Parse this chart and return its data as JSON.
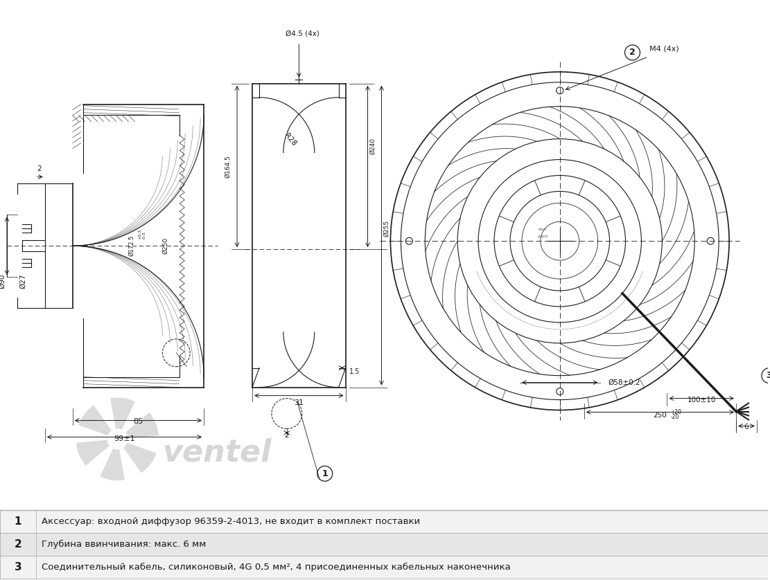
{
  "bg_color": "#ffffff",
  "drawing_color": "#1a1a1a",
  "table_rows": [
    {
      "num": "1",
      "text": "Аксессуар: входной диффузор 96359-2-4013, не входит в комплект поставки",
      "bg": "#f2f2f2"
    },
    {
      "num": "2",
      "text": "Глубина ввинчивания: макс. 6 мм",
      "bg": "#e6e6e6"
    },
    {
      "num": "3",
      "text": "Соединительный кабель, силиконовый, 4G 0,5 мм², 4 присоединенных кабельных наконечника",
      "bg": "#f2f2f2"
    }
  ],
  "watermark_color": "#cccccc",
  "dim_color": "#1a1a1a"
}
